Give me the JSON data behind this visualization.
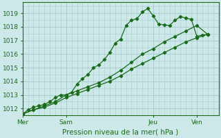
{
  "background_color": "#cce8e8",
  "grid_color": "#aacccc",
  "line_color": "#1a6b1a",
  "title": "Pression niveau de la mer( hPa )",
  "ylim": [
    1011.5,
    1019.8
  ],
  "yticks": [
    1012,
    1013,
    1014,
    1015,
    1016,
    1017,
    1018,
    1019
  ],
  "day_labels": [
    "Mer",
    "Sam",
    "Jeu",
    "Ven"
  ],
  "day_positions": [
    0,
    8,
    24,
    32
  ],
  "xlim": [
    0,
    36
  ],
  "line1_x": [
    0,
    1,
    2,
    3,
    4,
    5,
    6,
    7,
    8,
    9,
    10,
    11,
    12,
    13,
    14,
    15,
    16,
    17,
    18,
    19,
    20,
    21,
    22,
    23,
    24,
    25,
    26,
    27,
    28,
    29,
    30,
    31,
    32,
    33,
    34
  ],
  "line1_y": [
    1011.6,
    1011.9,
    1012.1,
    1012.2,
    1012.3,
    1012.5,
    1012.8,
    1013.0,
    1013.0,
    1013.2,
    1013.8,
    1014.2,
    1014.5,
    1015.0,
    1015.2,
    1015.6,
    1016.1,
    1016.8,
    1017.1,
    1018.1,
    1018.5,
    1018.6,
    1019.1,
    1019.35,
    1018.8,
    1018.2,
    1018.15,
    1018.1,
    1018.5,
    1018.75,
    1018.65,
    1018.55,
    1017.3,
    1017.4,
    1017.45
  ],
  "line2_x": [
    0,
    2,
    4,
    6,
    8,
    10,
    12,
    14,
    16,
    18,
    20,
    22,
    24,
    26,
    28,
    30,
    32,
    34
  ],
  "line2_y": [
    1011.6,
    1011.9,
    1012.1,
    1012.4,
    1012.8,
    1013.1,
    1013.4,
    1013.7,
    1014.0,
    1014.4,
    1014.9,
    1015.3,
    1015.7,
    1016.1,
    1016.5,
    1016.9,
    1017.2,
    1017.45
  ],
  "line3_x": [
    0,
    2,
    4,
    6,
    8,
    10,
    12,
    14,
    16,
    18,
    20,
    22,
    24,
    26,
    28,
    30,
    32,
    34
  ],
  "line3_y": [
    1011.6,
    1011.9,
    1012.2,
    1012.5,
    1013.0,
    1013.3,
    1013.6,
    1013.9,
    1014.3,
    1014.8,
    1015.4,
    1016.0,
    1016.4,
    1016.9,
    1017.3,
    1017.7,
    1018.1,
    1017.45
  ]
}
